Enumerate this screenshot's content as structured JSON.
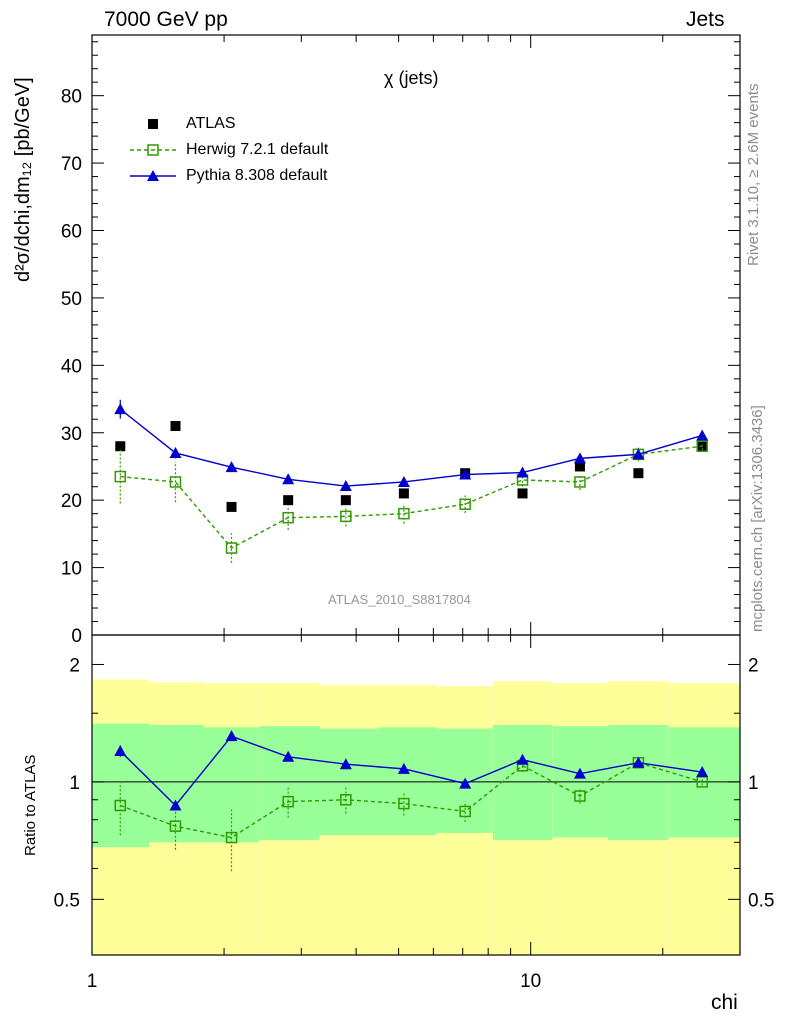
{
  "header": {
    "left": "7000 GeV pp",
    "right": "Jets"
  },
  "side_labels": {
    "rivet": "Rivet 3.1.10, ≥ 2.6M events",
    "mcplots": "mcplots.cern.ch [arXiv:1306.3436]"
  },
  "chart_data": {
    "type": "line",
    "title": "χ (jets)",
    "xlabel": "chi",
    "ylabel": "d²σ/dchi,dm₁₂ [pb/GeV]",
    "ratio_ylabel": "Ratio to ATLAS",
    "analysis_label": "ATLAS_2010_S8817804",
    "x_scale": "log",
    "xlim": [
      1,
      30
    ],
    "ylim": [
      0,
      89
    ],
    "ratio_ylim": [
      0.36,
      2.38
    ],
    "x_ticks": [
      1,
      10
    ],
    "y_ticks": [
      0,
      10,
      20,
      30,
      40,
      50,
      60,
      70,
      80
    ],
    "ratio_y_ticks": [
      0.5,
      1,
      2
    ],
    "x": [
      1.16,
      1.55,
      2.08,
      2.8,
      3.79,
      5.14,
      7.09,
      9.58,
      12.95,
      17.6,
      24.6
    ],
    "bin_edges": [
      1,
      1.35,
      1.8,
      2.4,
      3.3,
      4.5,
      6.1,
      8.2,
      11.2,
      15.0,
      20.6,
      30
    ],
    "legend_position": "top-left",
    "series": [
      {
        "name": "ATLAS",
        "marker": "square",
        "color": "#000000",
        "values": [
          28.0,
          31.0,
          19.0,
          20.0,
          20.0,
          21.0,
          24.0,
          21.0,
          25.0,
          24.0,
          28.0
        ]
      },
      {
        "name": "Herwig 7.2.1 default",
        "marker": "open-square",
        "color": "#339900",
        "dashed": true,
        "values": [
          23.5,
          22.7,
          12.9,
          17.4,
          17.6,
          18.0,
          19.4,
          23.0,
          22.7,
          26.8,
          28.0
        ],
        "errors": [
          4.0,
          3.0,
          2.2,
          1.8,
          1.5,
          1.5,
          1.3,
          1.0,
          1.2,
          1.0,
          0.6
        ],
        "ratio": [
          0.87,
          0.77,
          0.72,
          0.89,
          0.9,
          0.88,
          0.84,
          1.1,
          0.92,
          1.12,
          1.0
        ],
        "ratio_errors": [
          0.14,
          0.1,
          0.13,
          0.08,
          0.07,
          0.06,
          0.05,
          0.04,
          0.04,
          0.03,
          0.02
        ]
      },
      {
        "name": "Pythia 8.308 default",
        "marker": "triangle",
        "color": "#0000cc",
        "values": [
          33.5,
          27.0,
          24.9,
          23.1,
          22.1,
          22.7,
          23.8,
          24.1,
          26.2,
          26.8,
          29.6
        ],
        "errors": [
          1.4,
          0.8,
          0.7,
          0.5,
          0.4,
          0.4,
          0.4,
          0.4,
          0.4,
          0.4,
          0.4
        ],
        "ratio": [
          1.2,
          0.87,
          1.31,
          1.16,
          1.11,
          1.08,
          0.99,
          1.14,
          1.05,
          1.12,
          1.06
        ],
        "ratio_errors": [
          0.04,
          0.02,
          0.03,
          0.02,
          0.02,
          0.02,
          0.02,
          0.02,
          0.02,
          0.02,
          0.02
        ]
      }
    ],
    "uncertainty_bands": {
      "inner_color": "#99ff99",
      "outer_color": "#ffff99",
      "inner_low": [
        0.68,
        0.7,
        0.7,
        0.71,
        0.73,
        0.73,
        0.74,
        0.71,
        0.72,
        0.71,
        0.72
      ],
      "inner_high": [
        1.41,
        1.4,
        1.38,
        1.39,
        1.37,
        1.38,
        1.37,
        1.4,
        1.39,
        1.4,
        1.38
      ],
      "outer_low": [
        0.36,
        0.36,
        0.36,
        0.36,
        0.36,
        0.36,
        0.36,
        0.36,
        0.36,
        0.36,
        0.36
      ],
      "outer_high": [
        1.83,
        1.8,
        1.79,
        1.79,
        1.77,
        1.77,
        1.76,
        1.81,
        1.79,
        1.81,
        1.79
      ]
    }
  }
}
